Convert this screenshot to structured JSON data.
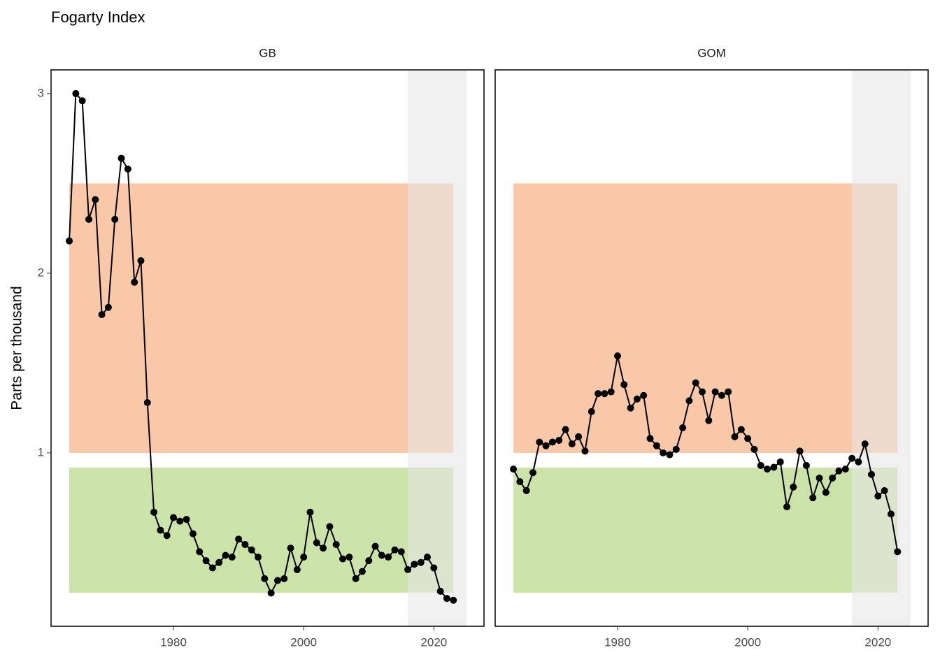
{
  "chart_data": {
    "type": "line",
    "title": "Fogarty Index",
    "y_label": "Parts per thousand",
    "xlim": [
      1961.2,
      2027.7
    ],
    "xticks": [
      1980,
      2000,
      2020
    ],
    "ylim": [
      0.035,
      3.132
    ],
    "yticks": [
      1,
      2,
      3
    ],
    "bands": [
      {
        "color": "#f4a46e",
        "y_range": [
          1.0,
          2.5
        ]
      },
      {
        "color": "#a9d16e",
        "y_range": [
          0.222,
          0.918
        ]
      }
    ],
    "band_x": [
      1964,
      2023
    ],
    "highlight_x": [
      2016,
      2025
    ],
    "highlight_color": "#e6e6e6",
    "line_color": "#000000",
    "x": [
      1964,
      1965,
      1966,
      1967,
      1968,
      1969,
      1970,
      1971,
      1972,
      1973,
      1974,
      1975,
      1976,
      1977,
      1978,
      1979,
      1980,
      1981,
      1982,
      1983,
      1984,
      1985,
      1986,
      1987,
      1988,
      1989,
      1990,
      1991,
      1992,
      1993,
      1994,
      1995,
      1996,
      1997,
      1998,
      1999,
      2000,
      2001,
      2002,
      2003,
      2004,
      2005,
      2006,
      2007,
      2008,
      2009,
      2010,
      2011,
      2012,
      2013,
      2014,
      2015,
      2016,
      2017,
      2018,
      2019,
      2020,
      2021,
      2022,
      2023
    ],
    "series": [
      {
        "name": "GB",
        "values": [
          2.18,
          3.0,
          2.96,
          2.3,
          2.41,
          1.77,
          1.81,
          2.3,
          2.64,
          2.58,
          1.95,
          2.07,
          1.28,
          0.67,
          0.57,
          0.54,
          0.64,
          0.62,
          0.63,
          0.55,
          0.45,
          0.4,
          0.36,
          0.39,
          0.43,
          0.42,
          0.52,
          0.49,
          0.46,
          0.42,
          0.3,
          0.22,
          0.29,
          0.3,
          0.47,
          0.35,
          0.42,
          0.67,
          0.5,
          0.47,
          0.59,
          0.49,
          0.41,
          0.42,
          0.3,
          0.34,
          0.4,
          0.48,
          0.43,
          0.42,
          0.46,
          0.45,
          0.35,
          0.38,
          0.39,
          0.42,
          0.36,
          0.23,
          0.19,
          0.18
        ]
      },
      {
        "name": "GOM",
        "values": [
          0.91,
          0.84,
          0.79,
          0.89,
          1.06,
          1.04,
          1.06,
          1.07,
          1.13,
          1.05,
          1.09,
          1.01,
          1.23,
          1.33,
          1.33,
          1.34,
          1.54,
          1.38,
          1.25,
          1.3,
          1.32,
          1.08,
          1.04,
          1.0,
          0.99,
          1.02,
          1.14,
          1.29,
          1.39,
          1.34,
          1.18,
          1.34,
          1.32,
          1.34,
          1.09,
          1.13,
          1.08,
          1.02,
          0.93,
          0.91,
          0.92,
          0.95,
          0.7,
          0.81,
          1.01,
          0.93,
          0.75,
          0.86,
          0.78,
          0.86,
          0.9,
          0.91,
          0.97,
          0.95,
          1.05,
          0.88,
          0.76,
          0.79,
          0.66,
          0.45
        ]
      }
    ]
  }
}
